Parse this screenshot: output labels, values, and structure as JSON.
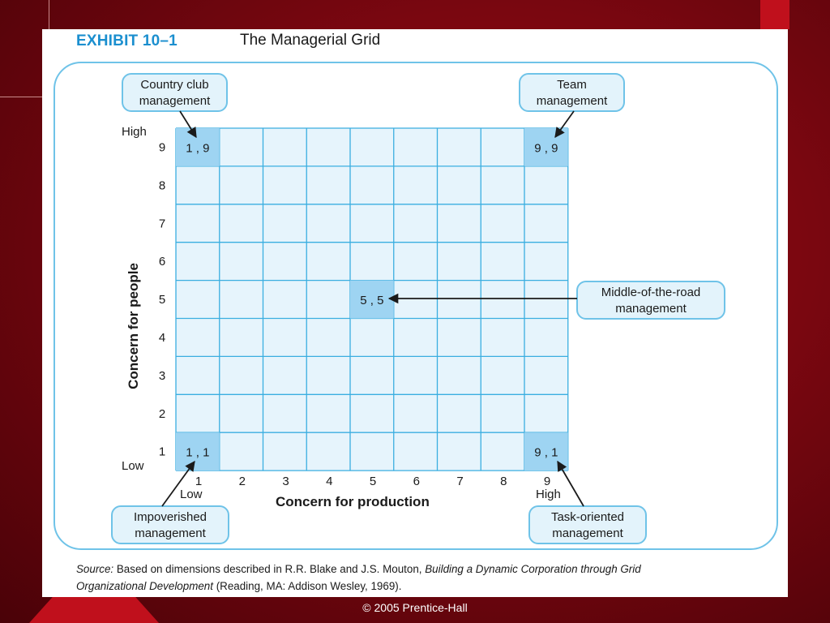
{
  "exhibit": {
    "number": "EXHIBIT 10–1",
    "title": "The Managerial Grid"
  },
  "axes": {
    "y_label": "Concern for people",
    "x_label": "Concern for production",
    "y_ticks": [
      "1",
      "2",
      "3",
      "4",
      "5",
      "6",
      "7",
      "8",
      "9"
    ],
    "x_ticks": [
      "1",
      "2",
      "3",
      "4",
      "5",
      "6",
      "7",
      "8",
      "9"
    ],
    "y_high": "High",
    "y_low": "Low",
    "x_low": "Low",
    "x_high": "High"
  },
  "highlighted_cells": [
    {
      "x": 1,
      "y": 9,
      "label": "1 , 9"
    },
    {
      "x": 9,
      "y": 9,
      "label": "9 , 9"
    },
    {
      "x": 5,
      "y": 5,
      "label": "5 , 5"
    },
    {
      "x": 1,
      "y": 1,
      "label": "1 , 1"
    },
    {
      "x": 9,
      "y": 1,
      "label": "9 , 1"
    }
  ],
  "callouts": {
    "country_club": [
      "Country club",
      "management"
    ],
    "team": [
      "Team",
      "management"
    ],
    "middle_road": [
      "Middle-of-the-road",
      "management"
    ],
    "impoverished": [
      "Impoverished",
      "management"
    ],
    "task_oriented": [
      "Task-oriented",
      "management"
    ]
  },
  "source": {
    "prefix": "Source:",
    "text1": " Based on dimensions described in R.R. Blake and J.S. Mouton, ",
    "book_a": "Building a Dynamic Corporation through Grid",
    "book_b": "Organizational Development",
    "text2": " (Reading, MA: Addison Wesley, 1969)."
  },
  "copyright": "© 2005 Prentice-Hall",
  "colors": {
    "grid_fill": "#e6f4fc",
    "grid_line": "#3aaee0",
    "cell_highlight": "#9ed4f2",
    "callout_fill": "#e3f3fb",
    "callout_border": "#6fc3e8",
    "accent": "#1b8fcf"
  }
}
